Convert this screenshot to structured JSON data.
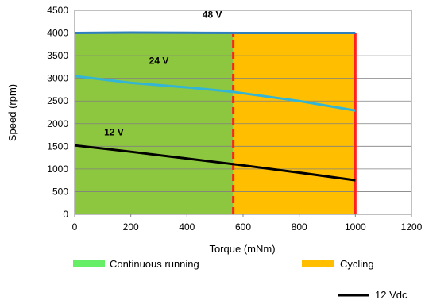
{
  "chart_data": {
    "type": "line",
    "title": "",
    "xlabel": "Torque (mNm)",
    "ylabel": "Speed (rpm)",
    "xlim": [
      0,
      1200
    ],
    "ylim": [
      0,
      4500
    ],
    "xticks": [
      0,
      200,
      400,
      600,
      800,
      1000,
      1200
    ],
    "yticks": [
      0,
      500,
      1000,
      1500,
      2000,
      2500,
      3000,
      3500,
      4000,
      4500
    ],
    "grid": true,
    "regions": [
      {
        "name": "Continuous running",
        "x": [
          0,
          565
        ],
        "y": [
          0,
          4000
        ],
        "color": "#8dc63f"
      },
      {
        "name": "Cycling",
        "x": [
          565,
          1000
        ],
        "y": [
          0,
          4000
        ],
        "color": "#ffbf00"
      }
    ],
    "limit_lines": [
      {
        "x": 565,
        "y": [
          0,
          4000
        ],
        "style": "dashed",
        "color": "#ff2020"
      },
      {
        "x": 1000,
        "y": [
          0,
          4000
        ],
        "style": "solid",
        "color": "#ff2020"
      }
    ],
    "series": [
      {
        "name": "48 V",
        "color": "#2f7fbf",
        "x": [
          0,
          200,
          400,
          600,
          800,
          1000
        ],
        "values": [
          4000,
          4010,
          4005,
          4000,
          4000,
          4000
        ]
      },
      {
        "name": "24 V",
        "color": "#33b5d6",
        "x": [
          0,
          200,
          400,
          565,
          800,
          1000
        ],
        "values": [
          3050,
          2900,
          2800,
          2700,
          2500,
          2290
        ]
      },
      {
        "name": "12 V",
        "color": "#000000",
        "x": [
          0,
          200,
          400,
          600,
          800,
          1000
        ],
        "values": [
          1520,
          1380,
          1230,
          1080,
          920,
          750
        ]
      }
    ],
    "curve_labels": [
      {
        "text": "48 V",
        "x": 490,
        "y": 4330
      },
      {
        "text": "24 V",
        "x": 300,
        "y": 3320
      },
      {
        "text": "12 V",
        "x": 140,
        "y": 1740
      }
    ],
    "legend": {
      "placement": "bottom",
      "items": [
        {
          "label": "Continuous running",
          "color": "#66ee66",
          "kind": "patch"
        },
        {
          "label": "Cycling",
          "color": "#ffbf00",
          "kind": "patch"
        },
        {
          "label": "12 Vdc",
          "color": "#000000",
          "kind": "line"
        }
      ]
    }
  }
}
